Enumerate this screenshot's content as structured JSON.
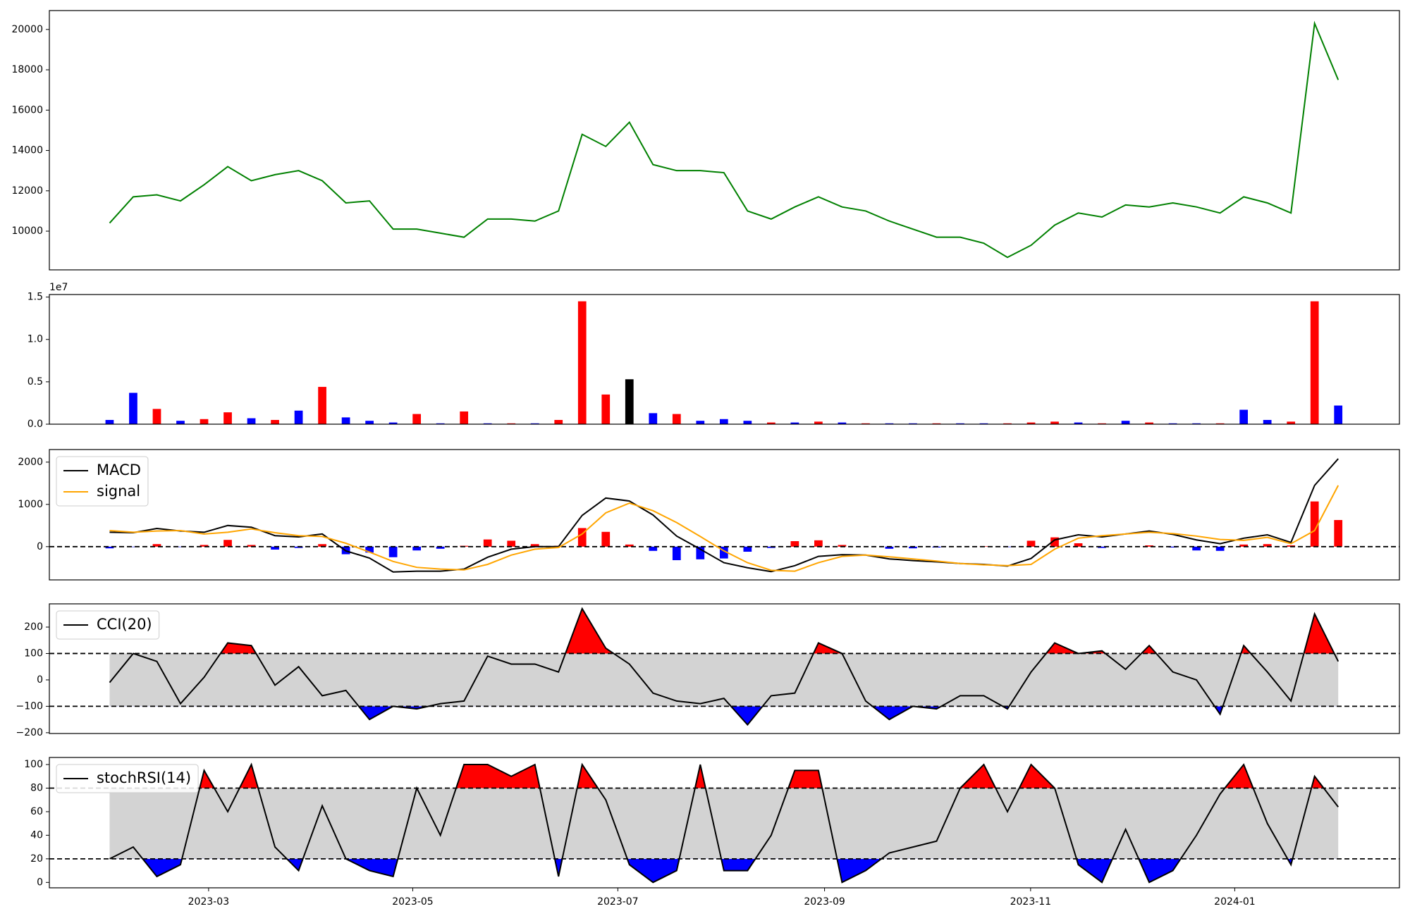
{
  "chart_data": [
    {
      "type": "line",
      "categories": [
        null,
        null,
        null,
        null,
        null,
        null,
        null,
        null,
        null,
        null,
        null,
        null,
        null,
        null,
        null,
        null,
        null,
        null,
        null,
        null,
        null,
        null,
        null,
        null,
        null,
        null,
        null,
        null,
        null,
        null,
        null,
        null,
        null,
        null,
        null,
        null,
        null,
        null,
        null,
        null,
        null,
        null,
        null,
        null,
        null,
        null,
        null,
        null,
        null,
        null,
        null,
        null,
        null
      ],
      "xlim": [
        -2.55,
        54.59
      ],
      "series": [
        {
          "color": "green",
          "values": [
            10400,
            11700,
            11800,
            11500,
            12300,
            13200,
            12500,
            12800,
            13000,
            12500,
            11400,
            11500,
            10100,
            10100,
            9900,
            9700,
            10600,
            10600,
            10500,
            11000,
            14800,
            14200,
            15400,
            13300,
            13000,
            13000,
            12900,
            11000,
            10600,
            11200,
            11700,
            11200,
            11000,
            10500,
            10100,
            9700,
            9700,
            9400,
            8700,
            9300,
            10300,
            10900,
            10700,
            11300,
            11200,
            11400,
            11200,
            10900,
            11700,
            11400,
            10900,
            20300,
            17500
          ]
        }
      ],
      "ylim": [
        8080,
        20937
      ],
      "yticks": [
        10000,
        12000,
        14000,
        16000,
        18000,
        20000
      ]
    },
    {
      "type": "bar",
      "categories": [
        null,
        null,
        null,
        null,
        null,
        null,
        null,
        null,
        null,
        null,
        null,
        null,
        null,
        null,
        null,
        null,
        null,
        null,
        null,
        null,
        null,
        null,
        null,
        null,
        null,
        null,
        null,
        null,
        null,
        null,
        null,
        null,
        null,
        null,
        null,
        null,
        null,
        null,
        null,
        null,
        null,
        null,
        null,
        null,
        null,
        null,
        null,
        null,
        null,
        null,
        null,
        null,
        null
      ],
      "xlim": [
        -2.55,
        54.59
      ],
      "values": [
        500000,
        3700000,
        1800000,
        400000,
        600000,
        1400000,
        700000,
        500000,
        1600000,
        4400000,
        800000,
        400000,
        200000,
        1200000,
        100000,
        1500000,
        100000,
        100000,
        100000,
        500000,
        14500000,
        3500000,
        5300000,
        1300000,
        1200000,
        400000,
        600000,
        400000,
        200000,
        200000,
        300000,
        200000,
        100000,
        100000,
        100000,
        100000,
        100000,
        100000,
        100000,
        200000,
        300000,
        200000,
        100000,
        400000,
        200000,
        100000,
        100000,
        100000,
        1700000,
        500000,
        300000,
        14500000,
        2200000
      ],
      "colors": [
        "blue",
        "blue",
        "red",
        "blue",
        "red",
        "red",
        "blue",
        "red",
        "blue",
        "red",
        "blue",
        "blue",
        "blue",
        "red",
        "blue",
        "red",
        "blue",
        "red",
        "blue",
        "red",
        "red",
        "red",
        "black",
        "blue",
        "red",
        "blue",
        "blue",
        "blue",
        "red",
        "blue",
        "red",
        "blue",
        "red",
        "blue",
        "blue",
        "red",
        "blue",
        "blue",
        "red",
        "red",
        "red",
        "blue",
        "red",
        "blue",
        "red",
        "blue",
        "blue",
        "red",
        "blue",
        "blue",
        "red",
        "red",
        "blue"
      ],
      "ylim": [
        0,
        15300000
      ],
      "yticks": [
        {
          "value": 0,
          "label": "0.0"
        },
        {
          "value": 5000000,
          "label": "0.5"
        },
        {
          "value": 10000000,
          "label": "1.0"
        },
        {
          "value": 15000000,
          "label": "1.5"
        }
      ],
      "offset_text": "1e7"
    },
    {
      "type": "line",
      "categories": [
        null,
        null,
        null,
        null,
        null,
        null,
        null,
        null,
        null,
        null,
        null,
        null,
        null,
        null,
        null,
        null,
        null,
        null,
        null,
        null,
        null,
        null,
        null,
        null,
        null,
        null,
        null,
        null,
        null,
        null,
        null,
        null,
        null,
        null,
        null,
        null,
        null,
        null,
        null,
        null,
        null,
        null,
        null,
        null,
        null,
        null,
        null,
        null,
        null,
        null,
        null,
        null,
        null
      ],
      "xlim": [
        -2.55,
        54.59
      ],
      "series": [
        {
          "name": "MACD",
          "color": "black",
          "values": [
            340,
            330,
            430,
            370,
            340,
            500,
            460,
            260,
            230,
            300,
            -100,
            -270,
            -600,
            -580,
            -580,
            -530,
            -250,
            -60,
            0,
            0,
            740,
            1150,
            1080,
            750,
            250,
            -60,
            -380,
            -500,
            -590,
            -450,
            -230,
            -190,
            -200,
            -290,
            -330,
            -360,
            -400,
            -420,
            -460,
            -280,
            160,
            280,
            230,
            300,
            370,
            290,
            160,
            70,
            200,
            280,
            100,
            1450,
            2080
          ]
        },
        {
          "name": "signal",
          "color": "orange",
          "values": [
            380,
            340,
            370,
            380,
            300,
            340,
            420,
            330,
            260,
            240,
            80,
            -130,
            -350,
            -490,
            -530,
            -550,
            -420,
            -200,
            -60,
            -20,
            300,
            800,
            1030,
            850,
            570,
            240,
            -100,
            -380,
            -560,
            -580,
            -380,
            -230,
            -200,
            -240,
            -290,
            -340,
            -400,
            -430,
            -450,
            -420,
            -60,
            200,
            260,
            300,
            340,
            310,
            250,
            170,
            150,
            220,
            70,
            380,
            1450
          ]
        }
      ],
      "histogram": {
        "pos_color": "red",
        "neg_color": "blue",
        "values": [
          -40,
          -10,
          60,
          -10,
          40,
          160,
          40,
          -70,
          -30,
          60,
          -180,
          -140,
          -250,
          -90,
          -50,
          20,
          170,
          140,
          60,
          20,
          440,
          350,
          50,
          -100,
          -320,
          -300,
          -280,
          -120,
          -30,
          130,
          150,
          40,
          0,
          -50,
          -40,
          -20,
          0,
          10,
          -10,
          140,
          220,
          80,
          -30,
          0,
          30,
          -20,
          -90,
          -100,
          50,
          60,
          30,
          1070,
          630
        ]
      },
      "hlines": [
        0
      ],
      "ylim": [
        -787,
        2298
      ],
      "yticks": [
        0,
        1000,
        2000
      ],
      "legend": "upper left"
    },
    {
      "type": "line",
      "categories": [
        null,
        null,
        null,
        null,
        null,
        null,
        null,
        null,
        null,
        null,
        null,
        null,
        null,
        null,
        null,
        null,
        null,
        null,
        null,
        null,
        null,
        null,
        null,
        null,
        null,
        null,
        null,
        null,
        null,
        null,
        null,
        null,
        null,
        null,
        null,
        null,
        null,
        null,
        null,
        null,
        null,
        null,
        null,
        null,
        null,
        null,
        null,
        null,
        null,
        null,
        null,
        null,
        null
      ],
      "xlim": [
        -2.55,
        54.59
      ],
      "series": [
        {
          "name": "CCI(20)",
          "color": "black",
          "values": [
            -10,
            100,
            70,
            -90,
            10,
            140,
            130,
            -20,
            50,
            -60,
            -40,
            -150,
            -100,
            -110,
            -90,
            -80,
            90,
            60,
            60,
            30,
            270,
            120,
            60,
            -50,
            -80,
            -90,
            -70,
            -170,
            -60,
            -50,
            140,
            100,
            -80,
            -150,
            -100,
            -110,
            -60,
            -60,
            -110,
            30,
            140,
            100,
            110,
            40,
            130,
            30,
            0,
            -130,
            130,
            30,
            -80,
            250,
            70
          ]
        }
      ],
      "band": [
        -100,
        100
      ],
      "band_color": "lightgray",
      "above_color": "red",
      "below_color": "blue",
      "ylim": [
        -203,
        288
      ],
      "yticks": [
        {
          "value": -200,
          "label": "−200"
        },
        {
          "value": -100,
          "label": "−100"
        },
        0,
        100,
        200
      ],
      "legend": "upper left"
    },
    {
      "type": "line",
      "categories": [
        null,
        null,
        null,
        null,
        null,
        null,
        null,
        null,
        null,
        null,
        null,
        null,
        null,
        null,
        null,
        null,
        null,
        null,
        null,
        null,
        null,
        null,
        null,
        null,
        null,
        null,
        null,
        null,
        null,
        null,
        null,
        null,
        null,
        null,
        null,
        null,
        null,
        null,
        null,
        null,
        null,
        null,
        null,
        null,
        null,
        null,
        null,
        null,
        null,
        null,
        null,
        null,
        null
      ],
      "xlim": [
        -2.55,
        54.59
      ],
      "series": [
        {
          "name": "stochRSI(14)",
          "color": "black",
          "values": [
            20,
            30,
            5,
            15,
            95,
            60,
            100,
            30,
            10,
            65,
            20,
            10,
            5,
            80,
            40,
            100,
            100,
            90,
            100,
            5,
            100,
            70,
            15,
            0,
            10,
            100,
            10,
            10,
            40,
            95,
            95,
            0,
            10,
            25,
            30,
            35,
            80,
            100,
            60,
            100,
            80,
            15,
            0,
            45,
            0,
            10,
            40,
            75,
            100,
            50,
            15,
            90,
            64
          ]
        }
      ],
      "band": [
        20,
        80
      ],
      "band_color": "lightgray",
      "above_color": "red",
      "below_color": "blue",
      "ylim": [
        -4.6,
        106
      ],
      "yticks": [
        0,
        20,
        40,
        60,
        80,
        100
      ],
      "legend": "upper left",
      "xticks": [
        {
          "value": 4.19,
          "label": "2023-03"
        },
        {
          "value": 12.83,
          "label": "2023-05"
        },
        {
          "value": 21.51,
          "label": "2023-07"
        },
        {
          "value": 30.26,
          "label": "2023-09"
        },
        {
          "value": 38.98,
          "label": "2023-11"
        },
        {
          "value": 47.62,
          "label": "2024-01"
        }
      ]
    }
  ]
}
